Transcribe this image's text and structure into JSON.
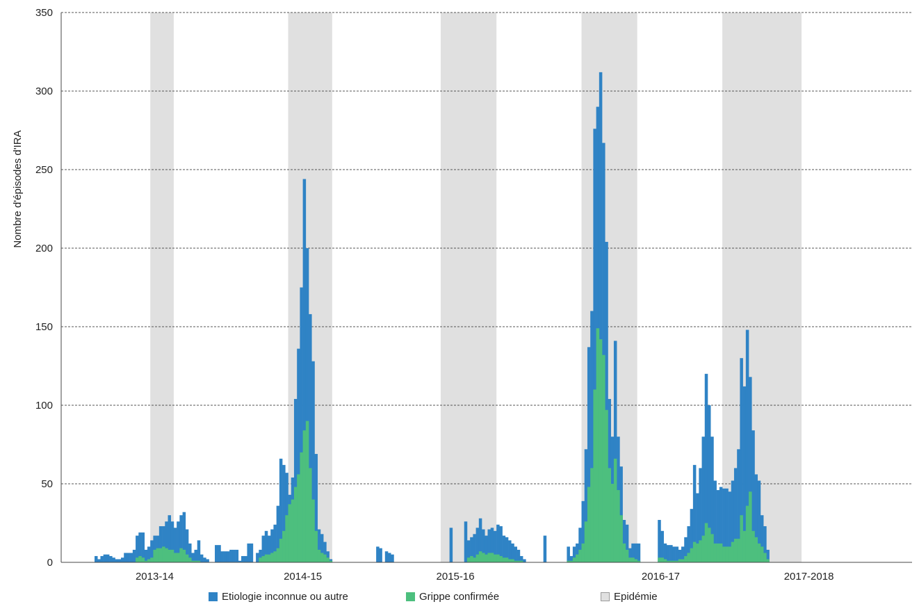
{
  "chart_data": {
    "type": "bar",
    "title": "",
    "xlabel": "",
    "ylabel": "Nombre d'épisodes d'IRA",
    "ylim": [
      0,
      350
    ],
    "yticks": [
      0,
      50,
      100,
      150,
      200,
      250,
      300,
      350
    ],
    "grid": "horizontal dashed",
    "legend_position": "bottom",
    "x_unit": "week index (continuous, 2013-14 to 2017-2018)",
    "x_tick_labels": [
      {
        "label": "2013-14",
        "x": 20.5
      },
      {
        "label": "2014-15",
        "x": 71
      },
      {
        "label": "2015-16",
        "x": 123
      },
      {
        "label": "2016-17",
        "x": 193
      },
      {
        "label": "2017-2018",
        "x": 243.5
      }
    ],
    "epidemic_periods": [
      {
        "season": "2013-14",
        "start": 19,
        "end": 27
      },
      {
        "season": "2014-15",
        "start": 66,
        "end": 81
      },
      {
        "season": "2015-16",
        "start": 118,
        "end": 137
      },
      {
        "season": "2016-17",
        "start": 166,
        "end": 185
      },
      {
        "season": "2017-2018",
        "start": 214,
        "end": 241
      }
    ],
    "series": [
      {
        "name": "Etiologie inconnue ou autre",
        "color": "#2f83c5",
        "start_x": 0,
        "values": [
          4,
          2,
          4,
          5,
          5,
          4,
          3,
          2,
          2,
          3,
          6,
          6,
          6,
          8,
          17,
          19,
          19,
          8,
          10,
          14,
          17,
          17,
          23,
          23,
          26,
          30,
          26,
          22,
          26,
          30,
          32,
          21,
          12,
          6,
          8,
          14,
          5,
          3,
          2,
          0,
          0,
          11,
          11,
          7,
          7,
          7,
          8,
          8,
          8,
          1,
          4,
          4,
          12,
          12,
          0,
          6,
          8,
          17,
          20,
          17,
          21,
          24,
          36,
          66,
          62,
          57,
          43,
          54,
          104,
          136,
          175,
          244,
          200,
          158,
          128,
          69,
          21,
          18,
          13,
          7,
          2,
          0,
          0,
          0,
          0,
          0,
          0,
          0,
          0,
          0,
          0,
          0,
          0,
          0,
          0,
          0,
          10,
          9,
          0,
          7,
          6,
          5,
          0,
          0,
          0,
          0,
          0,
          0,
          0,
          0,
          0,
          0,
          0,
          0,
          0,
          0,
          0,
          0,
          0,
          0,
          0,
          22,
          0,
          0,
          0,
          0,
          26,
          14,
          16,
          18,
          22,
          28,
          21,
          17,
          21,
          22,
          20,
          24,
          23,
          17,
          16,
          14,
          12,
          10,
          8,
          4,
          2,
          0,
          0,
          0,
          0,
          0,
          0,
          17,
          0,
          0,
          0,
          0,
          0,
          0,
          0,
          10,
          4,
          10,
          12,
          22,
          39,
          72,
          137,
          160,
          276,
          290,
          312,
          267,
          204,
          104,
          80,
          141,
          80,
          61,
          27,
          24,
          9,
          12,
          12,
          12,
          0,
          0,
          0,
          0,
          0,
          0,
          27,
          20,
          12,
          11,
          11,
          10,
          10,
          8,
          10,
          16,
          23,
          34,
          62,
          44,
          60,
          80,
          120,
          100,
          80,
          52,
          46,
          48,
          47,
          47,
          45,
          52,
          60,
          72,
          130,
          112,
          148,
          118,
          84,
          56,
          52,
          30,
          23,
          8
        ]
      },
      {
        "name": "Grippe confirmée",
        "color": "#4dbf7e",
        "start_x": 0,
        "values": [
          0,
          0,
          0,
          0,
          0,
          0,
          0,
          0,
          0,
          0,
          0,
          0,
          0,
          0,
          3,
          4,
          3,
          1,
          2,
          3,
          8,
          9,
          9,
          10,
          9,
          8,
          8,
          6,
          6,
          9,
          8,
          5,
          3,
          1,
          1,
          1,
          0,
          0,
          0,
          0,
          0,
          0,
          0,
          0,
          0,
          0,
          0,
          0,
          0,
          0,
          0,
          0,
          0,
          0,
          0,
          0,
          3,
          4,
          5,
          5,
          6,
          7,
          9,
          15,
          20,
          30,
          37,
          40,
          48,
          56,
          70,
          84,
          90,
          60,
          40,
          20,
          8,
          6,
          5,
          3,
          1,
          0,
          0,
          0,
          0,
          0,
          0,
          0,
          0,
          0,
          0,
          0,
          0,
          0,
          0,
          0,
          0,
          0,
          0,
          0,
          0,
          0,
          0,
          0,
          0,
          0,
          0,
          0,
          0,
          0,
          0,
          0,
          0,
          0,
          0,
          0,
          0,
          0,
          0,
          0,
          0,
          0,
          0,
          0,
          0,
          0,
          0,
          3,
          4,
          3,
          5,
          7,
          6,
          5,
          6,
          6,
          5,
          5,
          4,
          3,
          3,
          2,
          2,
          1,
          1,
          1,
          0,
          0,
          0,
          0,
          0,
          0,
          0,
          0,
          0,
          0,
          0,
          0,
          0,
          0,
          0,
          1,
          1,
          3,
          5,
          8,
          12,
          26,
          48,
          60,
          110,
          149,
          142,
          132,
          97,
          60,
          50,
          66,
          46,
          30,
          12,
          8,
          3,
          3,
          2,
          1,
          0,
          0,
          0,
          0,
          0,
          0,
          3,
          3,
          2,
          1,
          1,
          1,
          1,
          2,
          2,
          4,
          6,
          9,
          13,
          12,
          14,
          17,
          25,
          22,
          18,
          12,
          12,
          12,
          10,
          10,
          10,
          13,
          15,
          15,
          30,
          20,
          36,
          45,
          20,
          16,
          12,
          10,
          6,
          2
        ]
      },
      {
        "name": "Epidémie",
        "color": "#e0e0e0"
      }
    ]
  },
  "legend": {
    "items": [
      {
        "label": "Etiologie inconnue ou autre",
        "color": "#2f83c5"
      },
      {
        "label": "Grippe confirmée",
        "color": "#4dbf7e"
      },
      {
        "label": "Epidémie",
        "color": "#e0e0e0"
      }
    ]
  }
}
